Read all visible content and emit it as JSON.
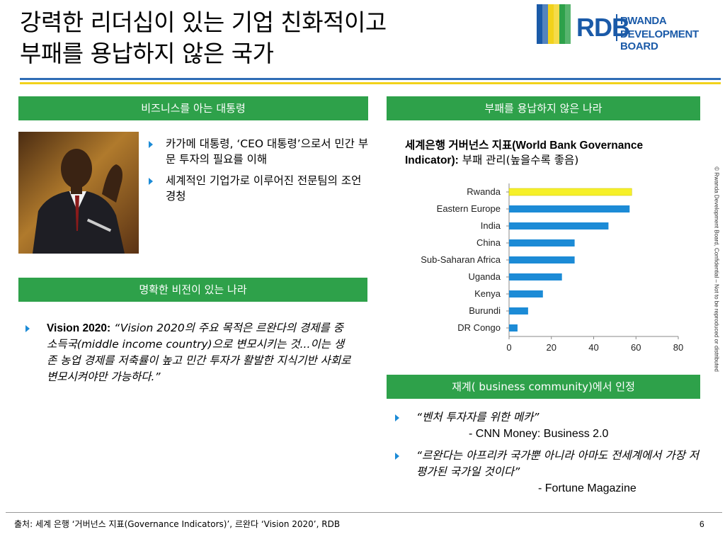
{
  "title": {
    "line1": "강력한 리더십이 있는 기업 친화적이고",
    "line2": "부패를 용납하지 않은 국가"
  },
  "logo": {
    "abbr": "RDB",
    "name_line1": "RWANDA",
    "name_line2": "DEVELOPMENT BOARD",
    "flag_colors": [
      "#1a5aa8",
      "#1a5aa8",
      "#f2d21b",
      "#f2d21b",
      "#2ea14a",
      "#2ea14a"
    ]
  },
  "colors": {
    "header_green": "#2ea14a",
    "bar_blue": "#1c8bd6",
    "bar_highlight": "#f6f029",
    "rule_blue": "#2f6db5",
    "rule_yellow": "#f2d21b"
  },
  "sections": {
    "business_president": {
      "header": "비즈니스를 아는 대통령",
      "bullets": [
        "카가메 대통령, ‘CEO 대통령’으로서 민간 부문 투자의 필요를 이해",
        "세계적인 기업가로 이루어진 전문팀의 조언 경청"
      ]
    },
    "no_corruption": {
      "header": "부패를 용납하지 않은 나라",
      "chart_title_bold": "세계은행 거버넌스 지표(World Bank Governance Indicator):",
      "chart_title_rest": " 부패 관리(높을수록 좋음)"
    },
    "vision": {
      "header": "명확한 비전이 있는 나라",
      "label": "Vision 2020:",
      "text": " “Vision 2020의 주요 목적은 르완다의 경제를 중소득국(middle income country)으로 변모시키는 것...이는 생존 농업 경제를 저축률이 높고 민간 투자가 활발한 지식기반 사회로 변모시켜야만 가능하다.”"
    },
    "business_community": {
      "header": "재계( business community)에서 인정",
      "quotes": [
        {
          "quote": "“벤처 투자자를 위한 메카”",
          "source": "- CNN Money: Business 2.0"
        },
        {
          "quote": "“르완다는 아프리카 국가뿐 아니라 아마도 전세계에서 가장 저평가된 국가일 것이다”",
          "source": "- Fortune Magazine"
        }
      ]
    }
  },
  "side_note": "© Rwanda Development Board, Confidential – Not to be reproduced or distributed",
  "footer": {
    "label": "출처:",
    "text": " 세계 은행 ‘거버넌스 지표(Governance Indicators)’, 르완다 ‘Vision 2020’, RDB",
    "page": "6"
  },
  "chart_data": {
    "type": "bar",
    "orientation": "horizontal",
    "categories": [
      "Rwanda",
      "Eastern Europe",
      "India",
      "China",
      "Sub-Saharan Africa",
      "Uganda",
      "Kenya",
      "Burundi",
      "DR Congo"
    ],
    "values": [
      58,
      57,
      47,
      31,
      31,
      25,
      16,
      9,
      4
    ],
    "highlight_index": 0,
    "xlim": [
      0,
      80
    ],
    "xticks": [
      0,
      20,
      40,
      60,
      80
    ],
    "grid": false
  }
}
